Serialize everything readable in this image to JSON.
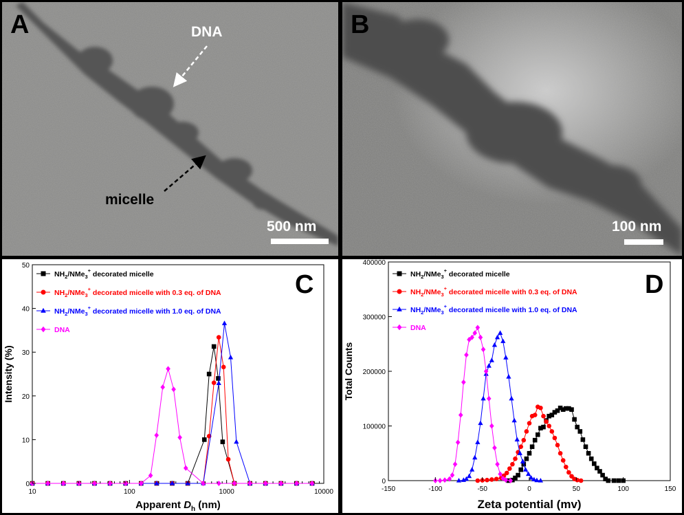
{
  "panels": {
    "A": {
      "label": "A",
      "scale": "500 nm",
      "annotations": {
        "dna": "DNA",
        "micelle": "micelle"
      }
    },
    "B": {
      "label": "B",
      "scale": "100 nm"
    },
    "C": {
      "label": "C"
    },
    "D": {
      "label": "D"
    }
  },
  "chart_data": [
    {
      "panel": "C",
      "type": "line",
      "xlabel_prefix": "Apparent ",
      "xlabel_var": "D",
      "xlabel_sub": "h",
      "xlabel_unit": " (nm)",
      "ylabel": "Intensity (%)",
      "xscale": "log",
      "xlim": [
        10,
        10000
      ],
      "ylim": [
        0,
        50
      ],
      "xticks": [
        10,
        100,
        1000,
        10000
      ],
      "yticks": [
        0,
        10,
        20,
        30,
        40,
        50
      ],
      "legend_position": "top-left",
      "series": [
        {
          "name": "NH2/NMe3+ decorated micelle",
          "legend": {
            "a": "NH",
            "b": "2",
            "c": "/NMe",
            "d": "3",
            "e": "+",
            "f": " decorated micelle"
          },
          "color": "#000000",
          "marker": "square",
          "points": [
            [
              590,
              10
            ],
            [
              660,
              25
            ],
            [
              740,
              31.3
            ],
            [
              820,
              24
            ],
            [
              910,
              9.5
            ]
          ]
        },
        {
          "name": "NH2/NMe3+ decorated micelle with 0.3 eq. of DNA",
          "legend": {
            "a": "NH",
            "b": "2",
            "c": "/NMe",
            "d": "3",
            "e": "+",
            "f": " decorated micelle with 0.3 eq. of DNA"
          },
          "color": "#ff0000",
          "marker": "circle",
          "points": [
            [
              660,
              10.8
            ],
            [
              740,
              23
            ],
            [
              830,
              33.4
            ],
            [
              930,
              26.6
            ],
            [
              1040,
              5.5
            ]
          ]
        },
        {
          "name": "NH2/NMe3+ decorated micelle with 1.0 eq. of DNA",
          "legend": {
            "a": "NH",
            "b": "2",
            "c": "/NMe",
            "d": "3",
            "e": "+",
            "f": " decorated micelle with 1.0 eq. of DNA"
          },
          "color": "#0000ff",
          "marker": "triangle",
          "points": [
            [
              830,
              22.9
            ],
            [
              950,
              36.6
            ],
            [
              1100,
              28.8
            ],
            [
              1260,
              9.5
            ]
          ]
        },
        {
          "name": "DNA",
          "legend": {
            "a": "DNA",
            "b": "",
            "c": "",
            "d": "",
            "e": "",
            "f": ""
          },
          "color": "#ff00ff",
          "marker": "diamond",
          "points": [
            [
              165,
              1.8
            ],
            [
              190,
              11
            ],
            [
              220,
              22
            ],
            [
              250,
              26.2
            ],
            [
              285,
              21.5
            ],
            [
              330,
              10.5
            ],
            [
              380,
              3.5
            ]
          ]
        }
      ]
    },
    {
      "panel": "D",
      "type": "line",
      "xlabel": "Zeta potential (mv)",
      "ylabel": "Total Counts",
      "xlim": [
        -150,
        150
      ],
      "ylim": [
        0,
        400000
      ],
      "xticks": [
        -150,
        -100,
        -50,
        0,
        50,
        100,
        150
      ],
      "yticks": [
        0,
        100000,
        200000,
        300000,
        400000
      ],
      "legend_position": "top-left",
      "series": [
        {
          "name": "NH2/NMe3+ decorated micelle",
          "legend": {
            "a": "NH",
            "b": "2",
            "c": "/NMe",
            "d": "3",
            "e": "+",
            "f": " decorated micelle"
          },
          "color": "#000000",
          "marker": "square",
          "points": [
            [
              -22,
              0
            ],
            [
              -18,
              1000
            ],
            [
              -15,
              5000
            ],
            [
              -12,
              10000
            ],
            [
              -9,
              20000
            ],
            [
              -6,
              30000
            ],
            [
              -3,
              40000
            ],
            [
              0,
              50000
            ],
            [
              3,
              62000
            ],
            [
              6,
              74000
            ],
            [
              9,
              84000
            ],
            [
              12,
              96000
            ],
            [
              15,
              98000
            ],
            [
              18,
              110000
            ],
            [
              21,
              118000
            ],
            [
              24,
              120000
            ],
            [
              27,
              125000
            ],
            [
              30,
              128000
            ],
            [
              33,
              133000
            ],
            [
              36,
              130000
            ],
            [
              39,
              132000
            ],
            [
              42,
              132000
            ],
            [
              45,
              130000
            ],
            [
              48,
              112000
            ],
            [
              51,
              98000
            ],
            [
              54,
              90000
            ],
            [
              57,
              75000
            ],
            [
              60,
              62000
            ],
            [
              63,
              50000
            ],
            [
              66,
              40000
            ],
            [
              69,
              31000
            ],
            [
              72,
              23000
            ],
            [
              75,
              17000
            ],
            [
              78,
              10000
            ],
            [
              81,
              3000
            ],
            [
              84,
              0
            ],
            [
              90,
              0
            ],
            [
              95,
              0
            ],
            [
              100,
              0
            ]
          ]
        },
        {
          "name": "NH2/NMe3+ decorated micelle with 0.3 eq. of DNA",
          "legend": {
            "a": "NH",
            "b": "2",
            "c": "/NMe",
            "d": "3",
            "e": "+",
            "f": " decorated micelle with 0.3 eq. of DNA"
          },
          "color": "#ff0000",
          "marker": "circle",
          "points": [
            [
              -55,
              0
            ],
            [
              -50,
              500
            ],
            [
              -45,
              1000
            ],
            [
              -40,
              2000
            ],
            [
              -35,
              3000
            ],
            [
              -30,
              5000
            ],
            [
              -27,
              9000
            ],
            [
              -24,
              14000
            ],
            [
              -21,
              22000
            ],
            [
              -18,
              30000
            ],
            [
              -15,
              40000
            ],
            [
              -12,
              52000
            ],
            [
              -9,
              62000
            ],
            [
              -6,
              74000
            ],
            [
              -3,
              90000
            ],
            [
              0,
              105000
            ],
            [
              3,
              118000
            ],
            [
              6,
              120000
            ],
            [
              9,
              135000
            ],
            [
              12,
              133000
            ],
            [
              15,
              118000
            ],
            [
              18,
              108000
            ],
            [
              21,
              100000
            ],
            [
              24,
              90000
            ],
            [
              27,
              78000
            ],
            [
              30,
              65000
            ],
            [
              33,
              50000
            ],
            [
              36,
              37000
            ],
            [
              39,
              25000
            ],
            [
              42,
              15000
            ],
            [
              45,
              8000
            ],
            [
              48,
              3000
            ],
            [
              51,
              1000
            ],
            [
              55,
              0
            ]
          ]
        },
        {
          "name": "NH2/NMe3+ decorated micelle with 1.0 eq. of DNA",
          "legend": {
            "a": "NH",
            "b": "2",
            "c": "/NMe",
            "d": "3",
            "e": "+",
            "f": " decorated micelle with 1.0 eq. of DNA"
          },
          "color": "#0000ff",
          "marker": "triangle",
          "points": [
            [
              -75,
              0
            ],
            [
              -70,
              1000
            ],
            [
              -67,
              3000
            ],
            [
              -64,
              8000
            ],
            [
              -61,
              20000
            ],
            [
              -58,
              42000
            ],
            [
              -55,
              70000
            ],
            [
              -52,
              105000
            ],
            [
              -49,
              150000
            ],
            [
              -46,
              195000
            ],
            [
              -43,
              210000
            ],
            [
              -40,
              220000
            ],
            [
              -37,
              248000
            ],
            [
              -34,
              262000
            ],
            [
              -31,
              270000
            ],
            [
              -28,
              255000
            ],
            [
              -25,
              225000
            ],
            [
              -22,
              190000
            ],
            [
              -19,
              150000
            ],
            [
              -16,
              110000
            ],
            [
              -13,
              75000
            ],
            [
              -10,
              50000
            ],
            [
              -7,
              35000
            ],
            [
              -4,
              20000
            ],
            [
              -1,
              12000
            ],
            [
              2,
              5000
            ],
            [
              5,
              2000
            ],
            [
              8,
              500
            ],
            [
              12,
              0
            ]
          ]
        },
        {
          "name": "DNA",
          "legend": {
            "a": "DNA",
            "b": "",
            "c": "",
            "d": "",
            "e": "",
            "f": ""
          },
          "color": "#ff00ff",
          "marker": "diamond",
          "points": [
            [
              -100,
              0
            ],
            [
              -95,
              0
            ],
            [
              -90,
              1000
            ],
            [
              -85,
              3000
            ],
            [
              -82,
              10000
            ],
            [
              -79,
              30000
            ],
            [
              -76,
              70000
            ],
            [
              -73,
              120000
            ],
            [
              -70,
              180000
            ],
            [
              -67,
              230000
            ],
            [
              -64,
              258000
            ],
            [
              -61,
              262000
            ],
            [
              -58,
              270000
            ],
            [
              -55,
              280000
            ],
            [
              -52,
              262000
            ],
            [
              -49,
              240000
            ],
            [
              -46,
              200000
            ],
            [
              -43,
              150000
            ],
            [
              -40,
              100000
            ],
            [
              -37,
              60000
            ],
            [
              -34,
              30000
            ],
            [
              -31,
              12000
            ],
            [
              -28,
              4000
            ],
            [
              -25,
              1000
            ],
            [
              -20,
              0
            ]
          ]
        }
      ]
    }
  ]
}
